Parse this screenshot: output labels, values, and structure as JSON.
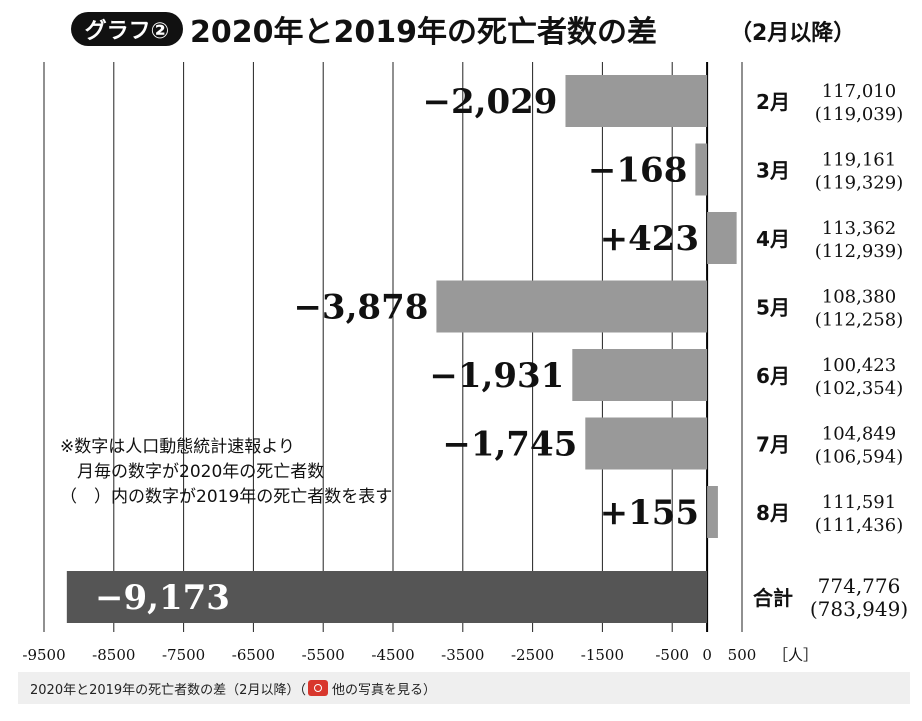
{
  "header": {
    "badge": "グラフ②",
    "title": "2020年と2019年の死亡者数の差",
    "subtitle": "（2月以降）"
  },
  "note": {
    "lines": [
      "※数字は人口動態統計速報より",
      "　月毎の数字が2020年の死亡者数",
      "（　）内の数字が2019年の死亡者数を表す"
    ]
  },
  "caption": {
    "text": "2020年と2019年の死亡者数の差（2月以降）（",
    "link": "他の写真を見る",
    "close": "）"
  },
  "colors": {
    "bar": "#999999",
    "total_bar": "#555555",
    "camera": "#d8372d"
  },
  "chart_data": {
    "type": "bar",
    "orientation": "horizontal",
    "unit_label": "［人］",
    "xlim": [
      -9500,
      500
    ],
    "x_ticks": [
      "-9500",
      "-8500",
      "-7500",
      "-6500",
      "-5500",
      "-4500",
      "-3500",
      "-2500",
      "-1500",
      "-500",
      "0",
      "500"
    ],
    "x_tick_values": [
      -9500,
      -8500,
      -7500,
      -6500,
      -5500,
      -4500,
      -3500,
      -2500,
      -1500,
      -500,
      0,
      500
    ],
    "categories": [
      "2月",
      "3月",
      "4月",
      "5月",
      "6月",
      "7月",
      "8月",
      "合計"
    ],
    "values": [
      -2029,
      -168,
      423,
      -3878,
      -1931,
      -1745,
      155,
      -9173
    ],
    "value_labels": [
      "−2,029",
      "−168",
      "+423",
      "−3,878",
      "−1,931",
      "−1,745",
      "+155",
      "−9,173"
    ],
    "deaths_2020": [
      "117,010",
      "119,161",
      "113,362",
      "108,380",
      "100,423",
      "104,849",
      "111,591",
      "774,776"
    ],
    "deaths_2019": [
      "(119,039)",
      "(119,329)",
      "(112,939)",
      "(112,258)",
      "(102,354)",
      "(106,594)",
      "(111,436)",
      "(783,949)"
    ],
    "grid": true
  }
}
